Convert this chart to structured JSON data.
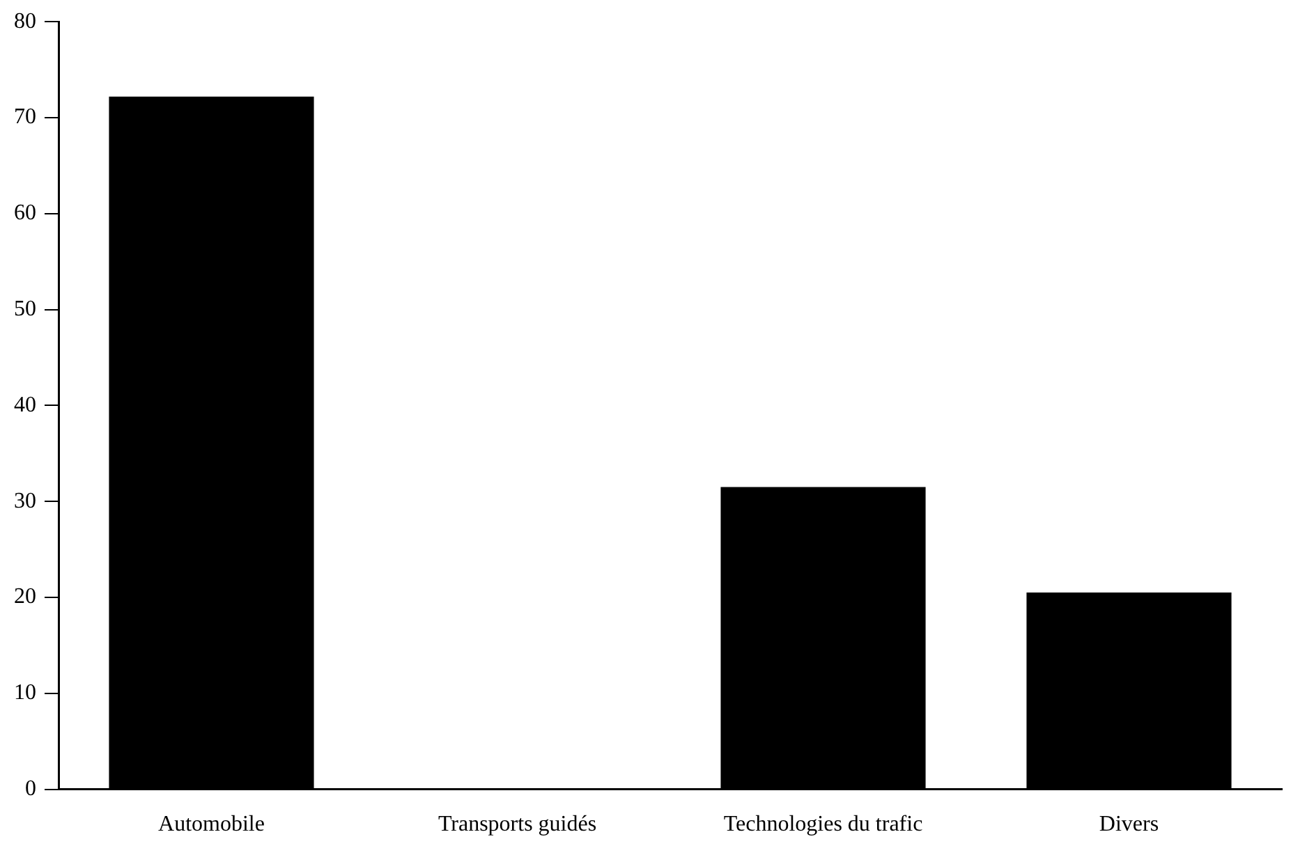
{
  "chart_data": {
    "type": "bar",
    "categories": [
      "Automobile",
      "Transports guidés",
      "Technologies du trafic",
      "Divers"
    ],
    "values": [
      72.2,
      0,
      31.5,
      20.5
    ],
    "color": "#000000",
    "ylim": [
      0,
      80
    ],
    "yticks": [
      0,
      10,
      20,
      30,
      40,
      50,
      60,
      70,
      80
    ],
    "grid": false,
    "legend": false
  }
}
